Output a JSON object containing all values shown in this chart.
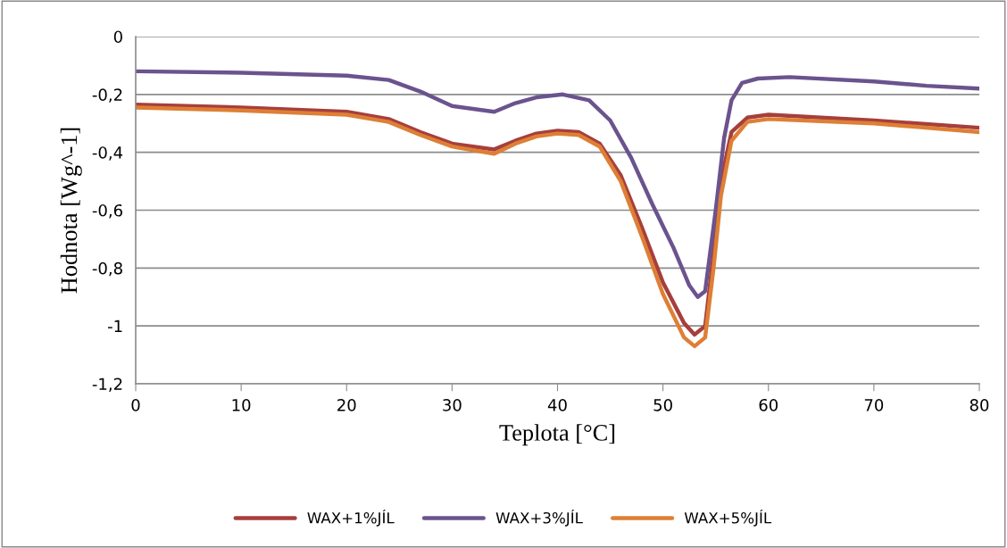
{
  "chart_data": {
    "type": "line",
    "xlabel": "Teplota [°C]",
    "ylabel": "Hodnota [Wg^-1]",
    "xlim": [
      0,
      80
    ],
    "xticks": [
      0,
      10,
      20,
      30,
      40,
      50,
      60,
      70,
      80
    ],
    "ylim": [
      -1.2,
      0
    ],
    "yticks": [
      {
        "value": -1.2,
        "label": "-1,2"
      },
      {
        "value": -1,
        "label": "-1"
      },
      {
        "value": -0.8,
        "label": "-0,8"
      },
      {
        "value": -0.6,
        "label": "-0,6"
      },
      {
        "value": -0.4,
        "label": "-0,4"
      },
      {
        "value": -0.2,
        "label": "-0,2"
      },
      {
        "value": 0,
        "label": "0"
      }
    ],
    "grid": "y",
    "legend": "bottom",
    "marker": "none",
    "line_style": "solid",
    "series": [
      {
        "name": "WAX+1%JÍL",
        "color": "#a63f3c",
        "x": [
          0,
          10,
          20,
          24,
          27,
          30,
          34,
          36,
          38,
          40,
          42,
          44,
          46,
          48,
          50,
          52,
          53,
          54,
          54.8,
          55.5,
          56.5,
          58,
          60,
          70,
          80
        ],
        "values": [
          -0.235,
          -0.245,
          -0.26,
          -0.285,
          -0.33,
          -0.37,
          -0.39,
          -0.36,
          -0.335,
          -0.325,
          -0.33,
          -0.37,
          -0.48,
          -0.66,
          -0.85,
          -0.99,
          -1.03,
          -1.0,
          -0.75,
          -0.5,
          -0.33,
          -0.28,
          -0.27,
          -0.29,
          -0.315
        ]
      },
      {
        "name": "WAX+3%JÍL",
        "color": "#6b538e",
        "x": [
          0,
          10,
          20,
          24,
          27,
          30,
          34,
          36,
          38,
          40.5,
          43,
          45,
          47,
          49,
          51,
          52.5,
          53.3,
          54,
          55,
          55.8,
          56.5,
          57.5,
          59,
          62,
          70,
          75,
          80
        ],
        "values": [
          -0.12,
          -0.125,
          -0.135,
          -0.15,
          -0.19,
          -0.24,
          -0.26,
          -0.23,
          -0.21,
          -0.2,
          -0.22,
          -0.29,
          -0.42,
          -0.58,
          -0.73,
          -0.86,
          -0.9,
          -0.88,
          -0.6,
          -0.35,
          -0.22,
          -0.16,
          -0.145,
          -0.14,
          -0.155,
          -0.17,
          -0.18
        ]
      },
      {
        "name": "WAX+5%JÍL",
        "color": "#de7f35",
        "x": [
          0,
          10,
          20,
          24,
          27,
          30,
          34,
          36,
          38,
          40,
          42,
          44,
          46,
          48,
          50,
          52,
          53,
          54,
          54.8,
          55.5,
          56.5,
          58,
          60,
          70,
          80
        ],
        "values": [
          -0.245,
          -0.255,
          -0.27,
          -0.295,
          -0.34,
          -0.38,
          -0.405,
          -0.37,
          -0.345,
          -0.335,
          -0.34,
          -0.38,
          -0.5,
          -0.69,
          -0.89,
          -1.04,
          -1.07,
          -1.04,
          -0.8,
          -0.55,
          -0.36,
          -0.295,
          -0.285,
          -0.3,
          -0.33
        ]
      }
    ]
  }
}
